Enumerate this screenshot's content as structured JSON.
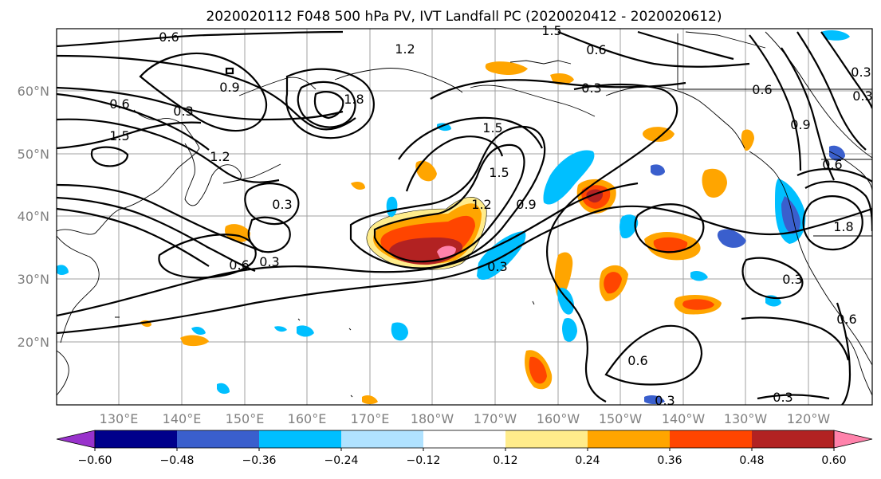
{
  "map": {
    "title": "2020020112 F048 500 hPa PV, IVT Landfall PC (2020020412 - 2020020612)",
    "lat_labels": [
      "60°N",
      "50°N",
      "40°N",
      "30°N",
      "20°N"
    ],
    "lon_labels": [
      "130°E",
      "140°E",
      "150°E",
      "160°E",
      "170°E",
      "180°W",
      "170°W",
      "160°W",
      "150°W",
      "140°W",
      "130°W",
      "120°W"
    ],
    "contour_labels": [
      "0.6",
      "1.2",
      "1.5",
      "0.6",
      "0.9",
      "0.3",
      "0.6",
      "1.5",
      "0.3",
      "1.2",
      "1.8",
      "1.5",
      "0.3",
      "0.6",
      "0.3",
      "1.2",
      "0.9",
      "0.3",
      "1.5",
      "0.6",
      "0.3",
      "0.6",
      "0.6",
      "0.3",
      "0.9",
      "1.8",
      "0.3",
      "0.3",
      "0.6",
      "0.3"
    ],
    "colorbar": {
      "tick_labels": [
        "−0.60",
        "−0.48",
        "−0.36",
        "−0.24",
        "−0.12",
        "0.12",
        "0.24",
        "0.36",
        "0.48",
        "0.60"
      ],
      "colors": [
        "#9932cc",
        "#00008b",
        "#3a5fcd",
        "#00bfff",
        "#b0e2ff",
        "#ffffff",
        "#ffec8b",
        "#ffa500",
        "#ff4500",
        "#b22222",
        "#ff82ab"
      ]
    }
  }
}
